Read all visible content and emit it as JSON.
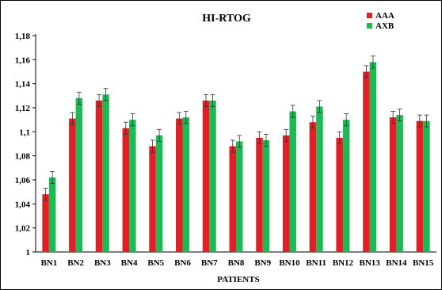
{
  "chart_data": {
    "type": "bar",
    "title": "HI-RTOG",
    "xlabel": "PATIENTS",
    "ylabel": "",
    "ylim": [
      1,
      1.18
    ],
    "yticks": [
      "1",
      "1,02",
      "1,04",
      "1,06",
      "1,08",
      "1,1",
      "1,12",
      "1,14",
      "1,16",
      "1,18"
    ],
    "ytick_values": [
      1,
      1.02,
      1.04,
      1.06,
      1.08,
      1.1,
      1.12,
      1.14,
      1.16,
      1.18
    ],
    "categories": [
      "BN1",
      "BN2",
      "BN3",
      "BN4",
      "BN5",
      "BN6",
      "BN7",
      "BN8",
      "BN9",
      "BN10",
      "BN11",
      "BN12",
      "BN13",
      "BN14",
      "BN15"
    ],
    "legend_placement": "top-right",
    "grid": false,
    "error_bars": true,
    "error_bar_value": 0.005,
    "series": [
      {
        "name": "AAA",
        "color": "#e31e24",
        "values": [
          1.048,
          1.111,
          1.126,
          1.103,
          1.088,
          1.111,
          1.126,
          1.088,
          1.095,
          1.097,
          1.108,
          1.095,
          1.15,
          1.112,
          1.109
        ]
      },
      {
        "name": "AXB",
        "color": "#1db954",
        "values": [
          1.062,
          1.128,
          1.131,
          1.11,
          1.097,
          1.112,
          1.126,
          1.092,
          1.093,
          1.117,
          1.121,
          1.11,
          1.158,
          1.114,
          1.109
        ]
      }
    ]
  }
}
